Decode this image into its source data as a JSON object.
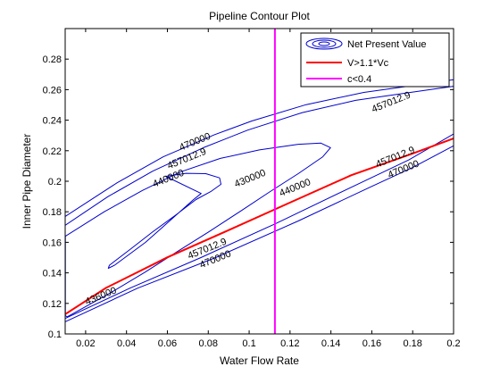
{
  "chart_data": {
    "type": "line",
    "title": "Pipeline Contour Plot",
    "xlabel": "Water Flow Rate",
    "ylabel": "Inner Pipe Diameter",
    "xlim": [
      0.01,
      0.2
    ],
    "ylim": [
      0.1,
      0.3
    ],
    "xticks": [
      "0.02",
      "0.04",
      "0.06",
      "0.08",
      "0.1",
      "0.12",
      "0.14",
      "0.16",
      "0.18",
      "0.2"
    ],
    "xtick_values": [
      0.02,
      0.04,
      0.06,
      0.08,
      0.1,
      0.12,
      0.14,
      0.16,
      0.18,
      0.2
    ],
    "yticks": [
      "0.1",
      "0.12",
      "0.14",
      "0.16",
      "0.18",
      "0.2",
      "0.22",
      "0.24",
      "0.26",
      "0.28"
    ],
    "ytick_values": [
      0.1,
      0.12,
      0.14,
      0.16,
      0.18,
      0.2,
      0.22,
      0.24,
      0.26,
      0.28
    ],
    "grid": false,
    "legend_position": "top-right",
    "legend": [
      {
        "label": "Net Present Value",
        "color": "#0000cc",
        "style": "contour"
      },
      {
        "label": "V>1.1*Vc",
        "color": "#ff0000",
        "style": "line"
      },
      {
        "label": "c<0.4",
        "color": "#ff00ff",
        "style": "line"
      }
    ],
    "series": [
      {
        "name": "Net Present Value",
        "level": "430000",
        "color": "#0000cc",
        "closed": true,
        "points": [
          [
            0.0592,
            0.2032
          ],
          [
            0.0691,
            0.2052
          ],
          [
            0.0788,
            0.205
          ],
          [
            0.0855,
            0.2022
          ],
          [
            0.0862,
            0.198
          ],
          [
            0.0812,
            0.1932
          ],
          [
            0.074,
            0.188
          ],
          [
            0.0642,
            0.178
          ],
          [
            0.053,
            0.167
          ],
          [
            0.0419,
            0.1555
          ],
          [
            0.0316,
            0.145
          ],
          [
            0.0311,
            0.143
          ],
          [
            0.0341,
            0.145
          ],
          [
            0.0493,
            0.16
          ],
          [
            0.0594,
            0.172
          ],
          [
            0.0678,
            0.182
          ],
          [
            0.0728,
            0.188
          ],
          [
            0.0765,
            0.192
          ]
        ]
      },
      {
        "name": "Net Present Value",
        "level": "440000",
        "color": "#0000cc",
        "closed": true,
        "points": [
          [
            0.0101,
            0.164
          ],
          [
            0.0291,
            0.18
          ],
          [
            0.0478,
            0.194
          ],
          [
            0.0662,
            0.206
          ],
          [
            0.0859,
            0.215
          ],
          [
            0.105,
            0.2205
          ],
          [
            0.124,
            0.2242
          ],
          [
            0.1351,
            0.225
          ],
          [
            0.1398,
            0.222
          ],
          [
            0.136,
            0.216
          ],
          [
            0.124,
            0.205
          ],
          [
            0.11,
            0.193
          ],
          [
            0.0959,
            0.1805
          ],
          [
            0.0804,
            0.167
          ],
          [
            0.0649,
            0.154
          ],
          [
            0.0492,
            0.1405
          ],
          [
            0.0323,
            0.127
          ],
          [
            0.011,
            0.1112
          ],
          [
            0.0101,
            0.112
          ]
        ]
      },
      {
        "name": "Net Present Value",
        "level": "457012.9",
        "color": "#0000cc",
        "closed": false,
        "points": [
          [
            0.0101,
            0.1712
          ],
          [
            0.031,
            0.19
          ],
          [
            0.0528,
            0.2066
          ],
          [
            0.0776,
            0.222
          ],
          [
            0.0993,
            0.2335
          ],
          [
            0.126,
            0.245
          ],
          [
            0.1521,
            0.253
          ],
          [
            0.1781,
            0.258
          ],
          [
            0.2,
            0.2622
          ]
        ]
      },
      {
        "name": "Net Present Value",
        "level": "457012.9",
        "color": "#0000cc",
        "closed": false,
        "points": [
          [
            0.0101,
            0.1102
          ],
          [
            0.0417,
            0.13
          ],
          [
            0.0764,
            0.15
          ],
          [
            0.1125,
            0.172
          ],
          [
            0.153,
            0.198
          ],
          [
            0.1781,
            0.214
          ],
          [
            0.2,
            0.231
          ]
        ]
      },
      {
        "name": "Net Present Value",
        "level": "470000",
        "color": "#0000cc",
        "closed": false,
        "points": [
          [
            0.0101,
            0.177
          ],
          [
            0.0354,
            0.199
          ],
          [
            0.058,
            0.216
          ],
          [
            0.0831,
            0.2305
          ],
          [
            0.1013,
            0.2395
          ],
          [
            0.1279,
            0.2502
          ],
          [
            0.1561,
            0.2582
          ],
          [
            0.1791,
            0.2625
          ],
          [
            0.2,
            0.2665
          ]
        ]
      },
      {
        "name": "Net Present Value",
        "level": "470000",
        "color": "#0000cc",
        "closed": false,
        "points": [
          [
            0.0101,
            0.108
          ],
          [
            0.0455,
            0.13
          ],
          [
            0.0836,
            0.15
          ],
          [
            0.124,
            0.174
          ],
          [
            0.159,
            0.196
          ],
          [
            0.18,
            0.209
          ],
          [
            0.2,
            0.2232
          ]
        ]
      },
      {
        "name": "V>1.1*Vc",
        "color": "#ff0000",
        "closed": false,
        "points": [
          [
            0.0101,
            0.113
          ],
          [
            0.03,
            0.1302
          ],
          [
            0.06,
            0.1502
          ],
          [
            0.09,
            0.168
          ],
          [
            0.12,
            0.186
          ],
          [
            0.15,
            0.204
          ],
          [
            0.18,
            0.2182
          ],
          [
            0.2,
            0.228
          ]
        ]
      },
      {
        "name": "c<0.4",
        "color": "#ff00ff",
        "closed": false,
        "points": [
          [
            0.1126,
            0.1
          ],
          [
            0.1126,
            0.3
          ]
        ]
      }
    ],
    "contour_labels": [
      {
        "text": "430000",
        "x": 0.101,
        "y": 0.2
      },
      {
        "text": "440000",
        "x": 0.061,
        "y": 0.2
      },
      {
        "text": "440000",
        "x": 0.123,
        "y": 0.194
      },
      {
        "text": "457012.9",
        "x": 0.07,
        "y": 0.213
      },
      {
        "text": "470000",
        "x": 0.074,
        "y": 0.224
      },
      {
        "text": "457012.9",
        "x": 0.17,
        "y": 0.25
      },
      {
        "text": "457012.9",
        "x": 0.172,
        "y": 0.214
      },
      {
        "text": "470000",
        "x": 0.176,
        "y": 0.206
      },
      {
        "text": "457012.9",
        "x": 0.08,
        "y": 0.154
      },
      {
        "text": "470000",
        "x": 0.084,
        "y": 0.147
      },
      {
        "text": "436000",
        "x": 0.028,
        "y": 0.123
      }
    ]
  }
}
